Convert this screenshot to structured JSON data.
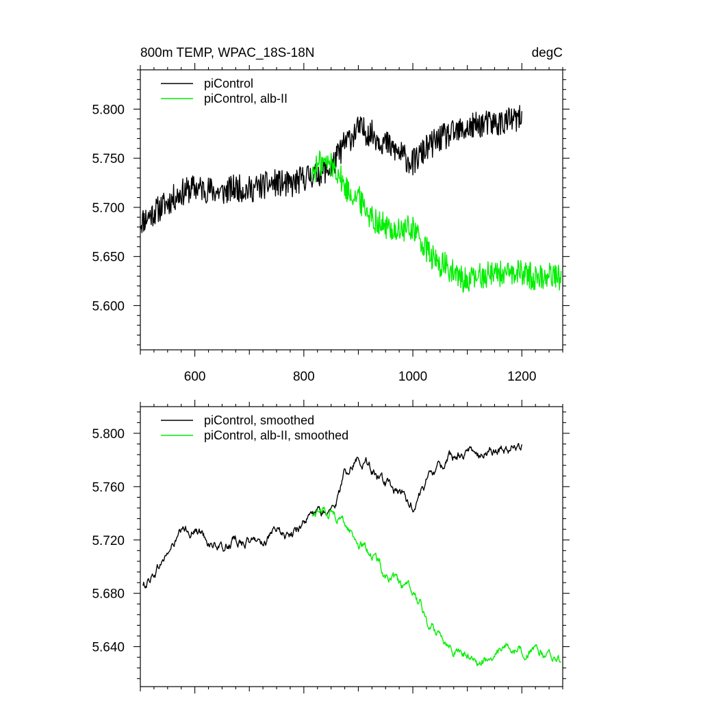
{
  "chart_data": [
    {
      "type": "line",
      "title": "800m TEMP, WPAC_18S-18N",
      "units": "degC",
      "xlim": [
        500,
        1275
      ],
      "ylim": [
        5.555,
        5.84
      ],
      "xticks": [
        600,
        800,
        1000,
        1200
      ],
      "xtick_labels": [
        "600",
        "800",
        "1000",
        "1200"
      ],
      "yticks": [
        5.6,
        5.65,
        5.7,
        5.75,
        5.8
      ],
      "ytick_labels": [
        "5.600",
        "5.650",
        "5.700",
        "5.750",
        "5.800"
      ],
      "legend_position": "top-left",
      "series": [
        {
          "name": "piControl",
          "color": "#000000",
          "x": [
            500,
            525,
            550,
            575,
            600,
            625,
            650,
            675,
            700,
            725,
            750,
            775,
            800,
            825,
            850,
            875,
            900,
            925,
            950,
            975,
            1000,
            1025,
            1050,
            1075,
            1100,
            1125,
            1150,
            1175,
            1200
          ],
          "y": [
            5.685,
            5.695,
            5.705,
            5.715,
            5.72,
            5.718,
            5.715,
            5.72,
            5.718,
            5.722,
            5.725,
            5.722,
            5.73,
            5.735,
            5.74,
            5.765,
            5.78,
            5.775,
            5.765,
            5.755,
            5.745,
            5.76,
            5.77,
            5.775,
            5.78,
            5.785,
            5.785,
            5.788,
            5.79
          ],
          "noise": 0.014
        },
        {
          "name": "piControl, alb-II",
          "color": "#00ee00",
          "x": [
            815,
            830,
            845,
            860,
            875,
            900,
            925,
            950,
            975,
            1000,
            1020,
            1040,
            1060,
            1080,
            1100,
            1125,
            1150,
            1175,
            1200,
            1225,
            1250,
            1272
          ],
          "y": [
            5.735,
            5.745,
            5.745,
            5.74,
            5.72,
            5.71,
            5.69,
            5.68,
            5.675,
            5.68,
            5.66,
            5.645,
            5.64,
            5.63,
            5.625,
            5.63,
            5.635,
            5.63,
            5.635,
            5.628,
            5.632,
            5.628
          ],
          "noise": 0.014
        }
      ]
    },
    {
      "type": "line",
      "xlim": [
        500,
        1275
      ],
      "ylim": [
        5.61,
        5.82
      ],
      "xticks": [
        600,
        800,
        1000,
        1200
      ],
      "yticks": [
        5.64,
        5.68,
        5.72,
        5.76,
        5.8
      ],
      "ytick_labels": [
        "5.640",
        "5.680",
        "5.720",
        "5.760",
        "5.800"
      ],
      "legend_position": "top-left",
      "series": [
        {
          "name": "piControl, smoothed",
          "color": "#000000",
          "x": [
            505,
            525,
            550,
            575,
            600,
            625,
            650,
            675,
            700,
            725,
            750,
            775,
            800,
            825,
            850,
            865,
            875,
            900,
            915,
            935,
            950,
            975,
            1000,
            1025,
            1050,
            1075,
            1100,
            1125,
            1150,
            1175,
            1200
          ],
          "y": [
            5.685,
            5.695,
            5.71,
            5.725,
            5.728,
            5.72,
            5.712,
            5.72,
            5.718,
            5.72,
            5.725,
            5.722,
            5.735,
            5.74,
            5.74,
            5.755,
            5.77,
            5.782,
            5.78,
            5.765,
            5.76,
            5.755,
            5.745,
            5.765,
            5.775,
            5.782,
            5.785,
            5.787,
            5.788,
            5.787,
            5.792
          ],
          "noise": 0.004
        },
        {
          "name": "piControl, alb-II, smoothed",
          "color": "#00ee00",
          "x": [
            815,
            830,
            850,
            865,
            880,
            900,
            925,
            950,
            975,
            1000,
            1015,
            1030,
            1050,
            1075,
            1100,
            1125,
            1150,
            1175,
            1200,
            1225,
            1250,
            1272
          ],
          "y": [
            5.738,
            5.743,
            5.742,
            5.738,
            5.73,
            5.718,
            5.71,
            5.695,
            5.685,
            5.68,
            5.67,
            5.655,
            5.65,
            5.64,
            5.632,
            5.628,
            5.632,
            5.64,
            5.638,
            5.635,
            5.632,
            5.63
          ],
          "noise": 0.004
        }
      ]
    }
  ]
}
